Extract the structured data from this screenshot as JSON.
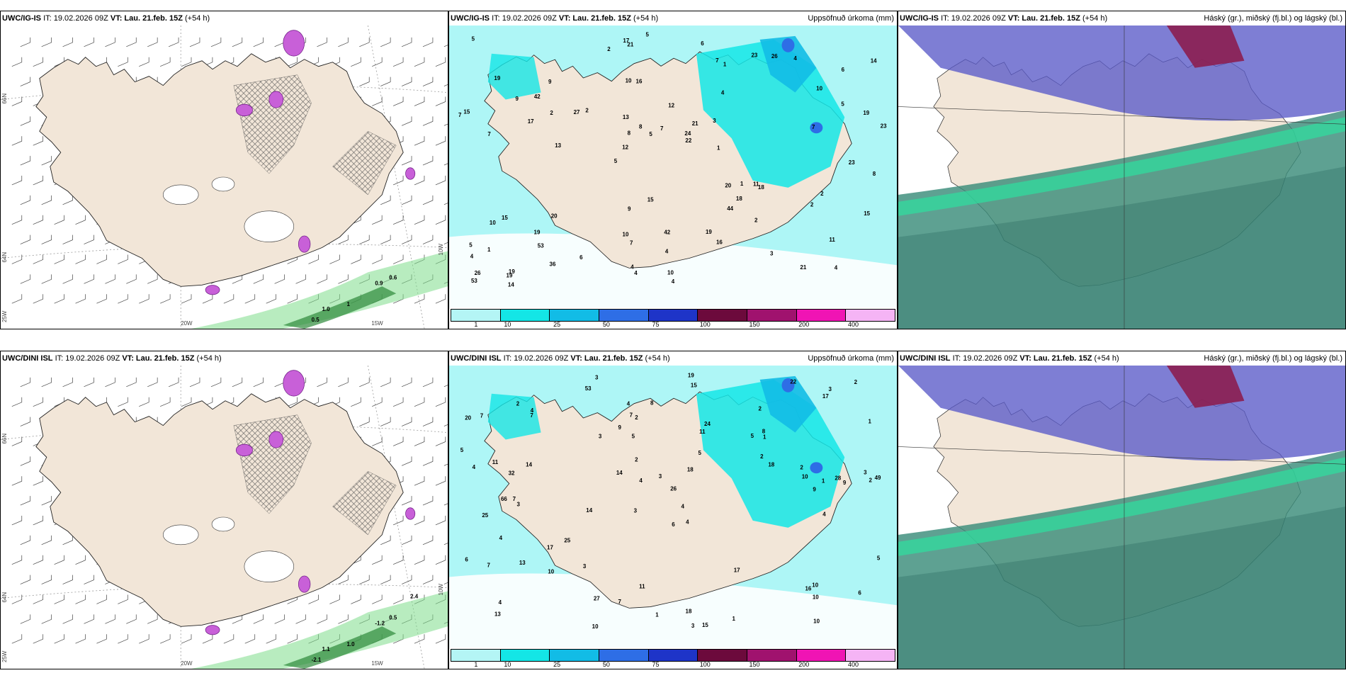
{
  "rows": [
    {
      "model": "UWC/IG-IS",
      "it_text": "IT: 19.02.2026 09Z",
      "vt_text": "VT: Lau. 21.feb. 15Z",
      "lead": "(+54 h)",
      "precip_title": "Uppsöfnuð úrkoma (mm)",
      "cloud_title": "Háský (gr.), miðský (fj.bl.) og lágský (bl.)",
      "wind_labels": [
        "0.5",
        "1",
        "0.9",
        "0.6",
        "1.0"
      ],
      "precip_numbers": [
        "4",
        "7",
        "6",
        "5",
        "4",
        "19",
        "10",
        "12",
        "15",
        "2",
        "4",
        "53",
        "16",
        "21",
        "18",
        "19",
        "21",
        "23",
        "20",
        "5",
        "12",
        "10",
        "8",
        "9",
        "23",
        "20",
        "21",
        "11",
        "11",
        "4",
        "27",
        "17",
        "44",
        "36",
        "19",
        "24",
        "26",
        "7",
        "22",
        "10",
        "10",
        "14",
        "18",
        "16",
        "19",
        "14",
        "53",
        "42",
        "4",
        "5",
        "13",
        "15",
        "42",
        "26",
        "19",
        "6",
        "2",
        "8",
        "15",
        "9",
        "6",
        "1",
        "2",
        "5",
        "5",
        "9",
        "8",
        "13",
        "4",
        "7",
        "1",
        "1",
        "2",
        "4",
        "7",
        "15",
        "3",
        "10",
        "19",
        "17",
        "23",
        "3",
        "2",
        "5",
        "2",
        "7",
        "4",
        "7",
        "1"
      ],
      "hatched": true
    },
    {
      "model": "UWC/DINI ISL",
      "it_text": "IT: 19.02.2026 09Z",
      "vt_text": "VT: Lau. 21.feb. 15Z",
      "lead": "(+54 h)",
      "precip_title": "Uppsöfnuð úrkoma (mm)",
      "cloud_title": "Háský (gr.), miðský (fj.bl.) og lágský (bl.)",
      "wind_labels": [
        "-2.1",
        "1.0",
        "-1.2",
        "0.5",
        "1.1",
        "2.4"
      ],
      "precip_numbers": [
        "3",
        "2",
        "2",
        "3",
        "4",
        "7",
        "7",
        "5",
        "25",
        "11",
        "26",
        "13",
        "53",
        "14",
        "3",
        "15",
        "11",
        "22",
        "18",
        "17",
        "32",
        "66",
        "49",
        "28",
        "6",
        "11",
        "4",
        "10",
        "10",
        "7",
        "16",
        "24",
        "13",
        "14",
        "17",
        "5",
        "2",
        "7",
        "2",
        "8",
        "4",
        "10",
        "1",
        "2",
        "1",
        "1",
        "10",
        "8",
        "5",
        "4",
        "7",
        "9",
        "18",
        "17",
        "15",
        "10",
        "2",
        "3",
        "3",
        "5",
        "6",
        "4",
        "4",
        "3",
        "6",
        "4",
        "1",
        "3",
        "3",
        "1",
        "4",
        "4",
        "3",
        "2",
        "5",
        "14",
        "27",
        "7",
        "9",
        "25",
        "19",
        "18",
        "10",
        "20",
        "9",
        "2"
      ],
      "hatched": true
    }
  ],
  "colorbar": {
    "colors": [
      "#b4f5f5",
      "#14e6e6",
      "#12bce6",
      "#2e6ee6",
      "#1e34c8",
      "#6c0a3c",
      "#a0126e",
      "#f014b4",
      "#f5b4f5"
    ],
    "ticks": [
      "1",
      "10",
      "25",
      "50",
      "75",
      "100",
      "150",
      "200",
      "400"
    ]
  },
  "axes": {
    "lon_labels": [
      "20W",
      "15W"
    ],
    "lat_labels": [
      "66N",
      "64N",
      "25W",
      "10W"
    ]
  },
  "colors": {
    "land": "#f2e6d8",
    "sea_precip": "#aef6f6",
    "cloud_high": "#c8c8c8",
    "cloud_mid": "#5a5ac8",
    "cloud_low": "#3a8c7a",
    "cloud_high_dark": "#8c1e50"
  }
}
